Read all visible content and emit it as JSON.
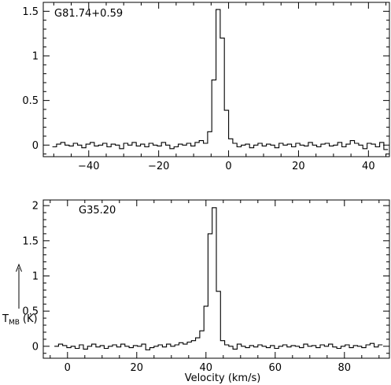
{
  "chart_data": [
    {
      "type": "line",
      "step": true,
      "label": "G81.74+0.59",
      "xlim": [
        -53,
        46
      ],
      "ylim": [
        -0.13,
        1.6
      ],
      "xticks": [
        -40,
        -20,
        0,
        20,
        40
      ],
      "xtick_labels": [
        "−40",
        "−20",
        "0",
        "20",
        "40"
      ],
      "yticks": [
        0,
        0.5,
        1,
        1.5
      ],
      "ytick_labels": [
        "0",
        "0.5",
        "1",
        "1.5"
      ],
      "x": [
        -49.8,
        -48.6,
        -47.4,
        -46.2,
        -45.0,
        -43.8,
        -42.6,
        -41.4,
        -40.2,
        -39.0,
        -37.8,
        -36.6,
        -35.4,
        -34.2,
        -33.0,
        -31.8,
        -30.6,
        -29.4,
        -28.2,
        -27.0,
        -25.8,
        -24.6,
        -23.4,
        -22.2,
        -21.0,
        -19.8,
        -18.6,
        -17.4,
        -16.2,
        -15.0,
        -13.8,
        -12.6,
        -11.4,
        -10.2,
        -9.0,
        -7.8,
        -6.6,
        -5.4,
        -4.2,
        -3.0,
        -1.8,
        -0.6,
        0.6,
        1.8,
        3.0,
        4.2,
        5.4,
        6.6,
        7.8,
        9.0,
        10.2,
        11.4,
        12.6,
        13.8,
        15.0,
        16.2,
        17.4,
        18.6,
        19.8,
        21.0,
        22.2,
        23.4,
        24.6,
        25.8,
        27.0,
        28.2,
        29.4,
        30.6,
        31.8,
        33.0,
        34.2,
        35.4,
        36.6,
        37.8,
        39.0,
        40.2,
        41.4,
        42.6,
        43.8,
        45.0
      ],
      "y": [
        -0.02,
        0.01,
        0.03,
        0.0,
        -0.01,
        0.02,
        0.0,
        -0.03,
        0.01,
        0.03,
        -0.01,
        0.0,
        0.02,
        -0.02,
        0.01,
        0.0,
        -0.04,
        0.02,
        0.0,
        0.03,
        -0.01,
        0.01,
        -0.02,
        0.02,
        0.0,
        -0.01,
        0.03,
        0.0,
        -0.04,
        -0.02,
        0.01,
        0.0,
        0.02,
        -0.01,
        0.03,
        0.05,
        0.02,
        0.15,
        0.73,
        1.52,
        1.2,
        0.39,
        0.07,
        0.02,
        -0.02,
        0.0,
        0.01,
        -0.03,
        0.0,
        0.02,
        -0.01,
        0.01,
        0.0,
        -0.03,
        0.02,
        0.0,
        0.01,
        -0.02,
        0.02,
        0.0,
        -0.01,
        0.03,
        0.0,
        -0.02,
        0.01,
        0.02,
        -0.01,
        0.0,
        0.03,
        -0.02,
        0.01,
        0.05,
        0.02,
        0.0,
        -0.04,
        0.02,
        0.01,
        -0.02,
        0.03,
        -0.05
      ]
    },
    {
      "type": "line",
      "step": true,
      "label": "G35.20",
      "xlabel": "Velocity (km/s)",
      "ylabel": "T_MB (K)",
      "xlim": [
        -7,
        93
      ],
      "ylim": [
        -0.17,
        2.08
      ],
      "xticks": [
        0,
        20,
        40,
        60,
        80
      ],
      "xtick_labels": [
        "0",
        "20",
        "40",
        "60",
        "80"
      ],
      "yticks": [
        0,
        0.5,
        1,
        1.5,
        2
      ],
      "ytick_labels": [
        "0",
        "0.5",
        "1",
        "1.5",
        "2"
      ],
      "x": [
        -3.2,
        -2.0,
        -0.8,
        0.4,
        1.6,
        2.8,
        4.0,
        5.2,
        6.4,
        7.6,
        8.8,
        10.0,
        11.2,
        12.4,
        13.6,
        14.8,
        16.0,
        17.2,
        18.4,
        19.6,
        20.8,
        22.0,
        23.2,
        24.4,
        25.6,
        26.8,
        28.0,
        29.2,
        30.4,
        31.6,
        32.8,
        34.0,
        35.2,
        36.4,
        37.6,
        38.8,
        40.0,
        41.2,
        42.4,
        43.6,
        44.8,
        46.0,
        47.2,
        48.4,
        49.6,
        50.8,
        52.0,
        53.2,
        54.4,
        55.6,
        56.8,
        58.0,
        59.2,
        60.4,
        61.6,
        62.8,
        64.0,
        65.2,
        66.4,
        67.6,
        68.8,
        70.0,
        71.2,
        72.4,
        73.6,
        74.8,
        76.0,
        77.2,
        78.4,
        79.6,
        80.8,
        82.0,
        83.2,
        84.4,
        85.6,
        86.8,
        88.0,
        89.2,
        90.4
      ],
      "y": [
        0.0,
        0.03,
        0.01,
        -0.02,
        0.0,
        -0.03,
        0.02,
        -0.04,
        0.0,
        0.03,
        -0.01,
        0.01,
        -0.03,
        0.0,
        0.02,
        -0.01,
        0.03,
        0.0,
        -0.02,
        0.01,
        0.0,
        0.03,
        -0.05,
        -0.02,
        0.0,
        0.02,
        -0.01,
        0.03,
        0.0,
        0.02,
        0.05,
        0.03,
        0.06,
        0.08,
        0.12,
        0.22,
        0.57,
        1.6,
        1.97,
        0.78,
        0.08,
        0.02,
        0.0,
        -0.04,
        0.03,
        0.0,
        -0.02,
        0.01,
        -0.01,
        0.02,
        0.0,
        -0.02,
        0.01,
        -0.03,
        0.0,
        0.02,
        -0.01,
        0.01,
        0.0,
        -0.02,
        0.03,
        0.0,
        0.01,
        -0.02,
        0.02,
        0.0,
        0.03,
        -0.01,
        -0.03,
        0.0,
        0.02,
        -0.02,
        0.01,
        0.0,
        -0.02,
        0.02,
        0.04,
        -0.01,
        0.02
      ]
    }
  ]
}
